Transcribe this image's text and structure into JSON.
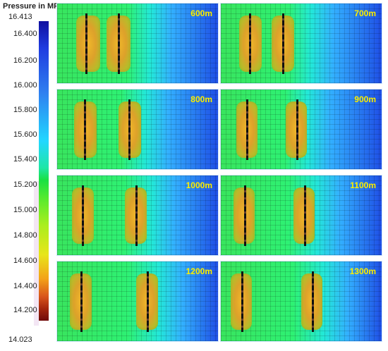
{
  "legend": {
    "title": "Pressure  in MPa",
    "max": "16.413",
    "min": "14.023",
    "ticks": [
      "16.400",
      "16.200",
      "16.000",
      "15.800",
      "15.600",
      "15.400",
      "15.200",
      "15.000",
      "14.800",
      "14.600",
      "14.400",
      "14.200"
    ]
  },
  "panels": [
    {
      "label": "600m"
    },
    {
      "label": "700m"
    },
    {
      "label": "800m"
    },
    {
      "label": "900m"
    },
    {
      "label": "1000m"
    },
    {
      "label": "1100m"
    },
    {
      "label": "1200m"
    },
    {
      "label": "1300m"
    }
  ]
}
